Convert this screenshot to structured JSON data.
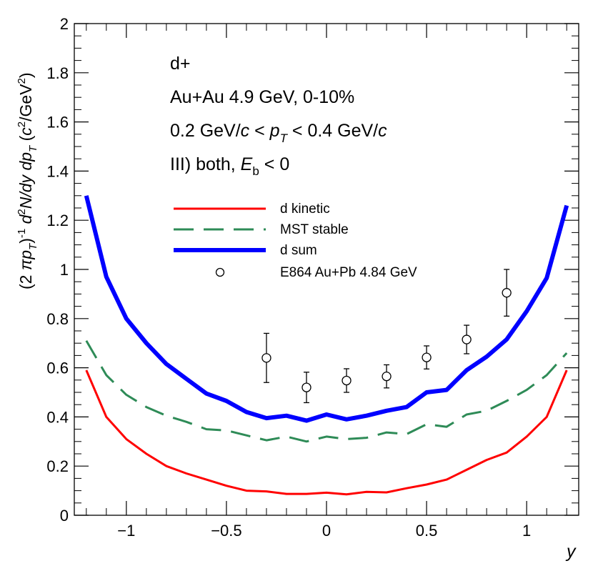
{
  "chart_data": {
    "type": "line",
    "xlabel": "y",
    "ylabel": "(2 πp_T)^-1 d^2N/dy dp_T (c^2/GeV^2)",
    "xlim": [
      -1.26,
      1.26
    ],
    "ylim": [
      0,
      2
    ],
    "x_ticks": [
      -1,
      -0.5,
      0,
      0.5,
      1
    ],
    "x_tick_labels": [
      "−1",
      "−0.5",
      "0",
      "0.5",
      "1"
    ],
    "y_ticks": [
      0,
      0.2,
      0.4,
      0.6,
      0.8,
      1,
      1.2,
      1.4,
      1.6,
      1.8,
      2
    ],
    "y_tick_labels": [
      "0",
      "0.2",
      "0.4",
      "0.6",
      "0.8",
      "1",
      "1.2",
      "1.4",
      "1.6",
      "1.8",
      "2"
    ],
    "annotations": {
      "particle": "d+",
      "system": "Au+Au 4.9 GeV, 0-10%",
      "pt_range": "0.2 GeV/c < p_T < 0.4 GeV/c",
      "scenario": "III) both, E_b < 0"
    },
    "series": [
      {
        "name": "d kinetic",
        "color": "#ff0000",
        "style": "solid",
        "x": [
          -1.2,
          -1.1,
          -1.0,
          -0.9,
          -0.8,
          -0.7,
          -0.6,
          -0.5,
          -0.4,
          -0.3,
          -0.2,
          -0.1,
          0.0,
          0.1,
          0.2,
          0.3,
          0.4,
          0.5,
          0.6,
          0.7,
          0.8,
          0.9,
          1.0,
          1.1,
          1.2
        ],
        "y": [
          0.59,
          0.4,
          0.31,
          0.25,
          0.2,
          0.17,
          0.145,
          0.12,
          0.1,
          0.097,
          0.087,
          0.087,
          0.092,
          0.085,
          0.095,
          0.093,
          0.11,
          0.125,
          0.145,
          0.185,
          0.225,
          0.255,
          0.32,
          0.4,
          0.59
        ]
      },
      {
        "name": "MST stable",
        "color": "#2e8b57",
        "style": "dashed",
        "x": [
          -1.2,
          -1.1,
          -1.0,
          -0.9,
          -0.8,
          -0.7,
          -0.6,
          -0.5,
          -0.4,
          -0.3,
          -0.2,
          -0.1,
          0.0,
          0.1,
          0.2,
          0.3,
          0.4,
          0.5,
          0.6,
          0.7,
          0.8,
          0.9,
          1.0,
          1.1,
          1.2
        ],
        "y": [
          0.71,
          0.57,
          0.49,
          0.44,
          0.405,
          0.38,
          0.35,
          0.345,
          0.325,
          0.305,
          0.32,
          0.3,
          0.32,
          0.31,
          0.315,
          0.337,
          0.33,
          0.37,
          0.36,
          0.41,
          0.425,
          0.465,
          0.51,
          0.57,
          0.66
        ]
      },
      {
        "name": "d sum",
        "color": "#0000ff",
        "style": "solid-thick",
        "x": [
          -1.2,
          -1.1,
          -1.0,
          -0.9,
          -0.8,
          -0.7,
          -0.6,
          -0.5,
          -0.4,
          -0.3,
          -0.2,
          -0.1,
          0.0,
          0.1,
          0.2,
          0.3,
          0.4,
          0.5,
          0.6,
          0.7,
          0.8,
          0.9,
          1.0,
          1.1,
          1.2
        ],
        "y": [
          1.3,
          0.97,
          0.8,
          0.7,
          0.615,
          0.555,
          0.495,
          0.465,
          0.42,
          0.395,
          0.405,
          0.385,
          0.41,
          0.39,
          0.405,
          0.425,
          0.44,
          0.5,
          0.51,
          0.59,
          0.645,
          0.715,
          0.83,
          0.965,
          1.26
        ]
      },
      {
        "name": "E864 Au+Pb 4.84 GeV",
        "color": "#000000",
        "style": "open-circle-markers",
        "x": [
          -0.3,
          -0.1,
          0.1,
          0.3,
          0.5,
          0.7,
          0.9
        ],
        "y": [
          0.64,
          0.52,
          0.548,
          0.565,
          0.642,
          0.715,
          0.905
        ],
        "yerr": [
          0.1,
          0.062,
          0.048,
          0.047,
          0.047,
          0.058,
          0.095
        ]
      }
    ]
  }
}
